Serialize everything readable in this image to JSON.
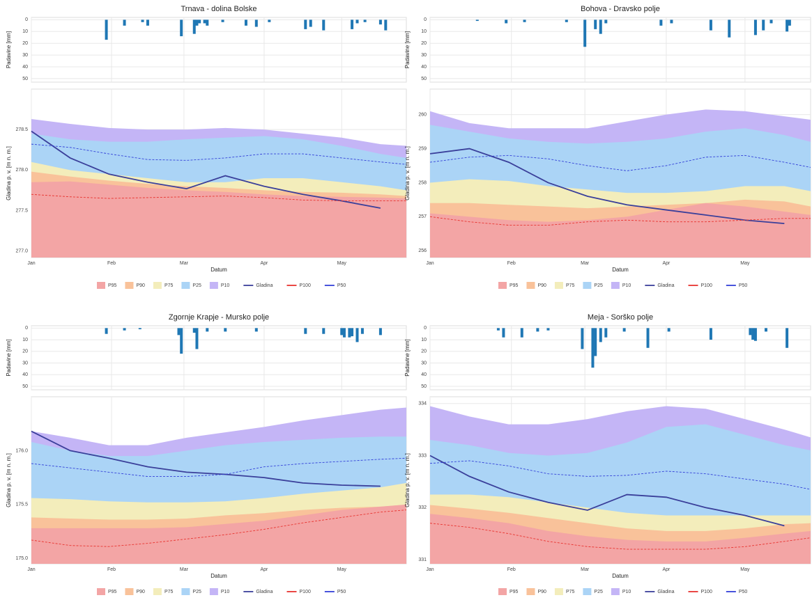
{
  "chart_data": [
    {
      "type": "bar",
      "title": "Trnava - dolina Bolske",
      "y_label": "Padavine [mm]",
      "color": "#1f77b4",
      "x": [
        29,
        36,
        43,
        45,
        58,
        63,
        64,
        65,
        67,
        68,
        74,
        83,
        87,
        92,
        106,
        108,
        113,
        124,
        126,
        129,
        135,
        137
      ],
      "values": [
        17,
        5,
        2,
        5,
        14,
        12,
        5,
        3,
        3,
        5,
        2,
        5,
        6,
        2,
        8,
        6,
        9,
        8,
        3,
        2,
        4,
        9
      ],
      "xlim": [
        0,
        145
      ],
      "xticks": [
        0,
        31,
        59,
        90,
        120
      ],
      "ylim": [
        53,
        -2
      ],
      "yticks": [
        0,
        10,
        20,
        30,
        40,
        50
      ],
      "grid": true
    },
    {
      "type": "area",
      "y_label": "Gladina p. v. [m n. m.]",
      "x_label": "Datum",
      "legend": "bottom",
      "grid": true,
      "x": [
        0,
        15,
        30,
        45,
        60,
        75,
        90,
        105,
        120,
        135,
        145
      ],
      "xlim": [
        0,
        145
      ],
      "xticks": [
        {
          "value": 0,
          "label": "Jan"
        },
        {
          "value": 31,
          "label": "Feb"
        },
        {
          "value": 59,
          "label": "Mar"
        },
        {
          "value": 90,
          "label": "Apr"
        },
        {
          "value": 120,
          "label": "May"
        }
      ],
      "ylim": [
        276.92,
        279.0
      ],
      "yticks": [
        {
          "value": 277,
          "label": "277.0"
        },
        277.5,
        {
          "value": 278,
          "label": "278.0"
        },
        278.5
      ],
      "series": [
        {
          "name": "P95",
          "kind": "area",
          "color": "#f3a5a5",
          "values": [
            277.85,
            277.86,
            277.82,
            277.78,
            277.75,
            277.73,
            277.7,
            277.68,
            277.67,
            277.66,
            277.65
          ]
        },
        {
          "name": "P90",
          "kind": "area",
          "color": "#f9c29a",
          "values": [
            277.98,
            277.92,
            277.87,
            277.83,
            277.8,
            277.78,
            277.75,
            277.73,
            277.72,
            277.7,
            277.68
          ]
        },
        {
          "name": "P75",
          "kind": "area",
          "color": "#f3edbb",
          "values": [
            278.1,
            278.0,
            277.95,
            277.9,
            277.85,
            277.85,
            277.9,
            277.9,
            277.85,
            277.8,
            277.75
          ]
        },
        {
          "name": "P25",
          "kind": "area",
          "color": "#abd4f6",
          "values": [
            278.45,
            278.38,
            278.35,
            278.35,
            278.38,
            278.4,
            278.42,
            278.38,
            278.3,
            278.2,
            278.15
          ]
        },
        {
          "name": "P10",
          "kind": "area",
          "color": "#c4b5f6",
          "values": [
            278.63,
            278.57,
            278.52,
            278.5,
            278.5,
            278.52,
            278.5,
            278.45,
            278.4,
            278.32,
            278.3
          ]
        },
        {
          "name": "Gladina",
          "kind": "line",
          "color": "#3a3f9a",
          "values": [
            278.48,
            278.15,
            277.95,
            277.85,
            277.77,
            277.93,
            277.8,
            277.7,
            277.62,
            277.53,
            null
          ]
        },
        {
          "name": "P100",
          "kind": "dashed",
          "color": "#e8332f",
          "values": [
            277.7,
            277.67,
            277.65,
            277.66,
            277.67,
            277.68,
            277.66,
            277.63,
            277.62,
            277.62,
            277.62
          ]
        },
        {
          "name": "P50",
          "kind": "dashed",
          "color": "#3340d8",
          "values": [
            278.32,
            278.28,
            278.2,
            278.13,
            278.12,
            278.15,
            278.2,
            278.2,
            278.15,
            278.1,
            278.07
          ]
        }
      ]
    },
    {
      "type": "bar",
      "title": "Bohova - Dravsko polje",
      "y_label": "Padavine [mm]",
      "color": "#1f77b4",
      "x": [
        18,
        29,
        36,
        52,
        59,
        63,
        65,
        67,
        88,
        92,
        107,
        114,
        124,
        127,
        130,
        136,
        137
      ],
      "values": [
        1,
        3,
        2,
        2,
        23,
        8,
        12,
        3,
        5,
        3,
        9,
        15,
        13,
        9,
        3,
        10,
        5
      ],
      "xlim": [
        0,
        145
      ],
      "xticks": [
        0,
        31,
        59,
        90,
        120
      ],
      "ylim": [
        53,
        -2
      ],
      "yticks": [
        0,
        10,
        20,
        30,
        40,
        50
      ],
      "grid": true
    },
    {
      "type": "area",
      "y_label": "Gladina p. v. [m n. m.]",
      "x_label": "Datum",
      "legend": "bottom",
      "grid": true,
      "x": [
        0,
        15,
        30,
        45,
        60,
        75,
        90,
        105,
        120,
        135,
        145
      ],
      "xlim": [
        0,
        145
      ],
      "xticks": [
        {
          "value": 0,
          "label": "Jan"
        },
        {
          "value": 31,
          "label": "Feb"
        },
        {
          "value": 59,
          "label": "Mar"
        },
        {
          "value": 90,
          "label": "Apr"
        },
        {
          "value": 120,
          "label": "May"
        }
      ],
      "ylim": [
        255.8,
        260.75
      ],
      "yticks": [
        256,
        257,
        258,
        259,
        260
      ],
      "series": [
        {
          "name": "P95",
          "kind": "area",
          "color": "#f3a5a5",
          "values": [
            257.1,
            257.0,
            256.9,
            256.85,
            256.9,
            257.0,
            257.2,
            257.4,
            257.3,
            257.15,
            257.05
          ]
        },
        {
          "name": "P90",
          "kind": "area",
          "color": "#f9c29a",
          "values": [
            257.4,
            257.4,
            257.35,
            257.3,
            257.25,
            257.3,
            257.35,
            257.4,
            257.5,
            257.45,
            257.3
          ]
        },
        {
          "name": "P75",
          "kind": "area",
          "color": "#f3edbb",
          "values": [
            258.0,
            258.1,
            258.05,
            257.9,
            257.8,
            257.7,
            257.7,
            257.75,
            257.9,
            257.9,
            257.75
          ]
        },
        {
          "name": "P25",
          "kind": "area",
          "color": "#abd4f6",
          "values": [
            259.7,
            259.5,
            259.3,
            259.2,
            259.15,
            259.2,
            259.3,
            259.5,
            259.6,
            259.4,
            259.2
          ]
        },
        {
          "name": "P10",
          "kind": "area",
          "color": "#c4b5f6",
          "values": [
            260.1,
            259.75,
            259.6,
            259.6,
            259.6,
            259.8,
            260.0,
            260.15,
            260.1,
            259.95,
            259.85
          ]
        },
        {
          "name": "Gladina",
          "kind": "line",
          "color": "#3a3f9a",
          "values": [
            258.85,
            259.0,
            258.6,
            258.0,
            257.6,
            257.35,
            257.2,
            257.05,
            256.9,
            256.8,
            null
          ]
        },
        {
          "name": "P100",
          "kind": "dashed",
          "color": "#e8332f",
          "values": [
            257.0,
            256.85,
            256.75,
            256.75,
            256.85,
            256.9,
            256.85,
            256.85,
            256.9,
            256.95,
            256.95
          ]
        },
        {
          "name": "P50",
          "kind": "dashed",
          "color": "#3340d8",
          "values": [
            258.6,
            258.75,
            258.8,
            258.7,
            258.5,
            258.35,
            258.5,
            258.75,
            258.8,
            258.6,
            258.45
          ]
        }
      ]
    },
    {
      "type": "bar",
      "title": "Zgornje Krapje - Mursko polje",
      "y_label": "Padavine [mm]",
      "color": "#1f77b4",
      "x": [
        29,
        36,
        42,
        57,
        58,
        63,
        64,
        68,
        75,
        87,
        106,
        113,
        120,
        121,
        123,
        124,
        126,
        128,
        135
      ],
      "values": [
        5,
        2,
        1,
        6,
        22,
        4,
        18,
        3,
        3,
        3,
        5,
        5,
        6,
        8,
        8,
        7,
        12,
        5,
        6
      ],
      "xlim": [
        0,
        145
      ],
      "xticks": [
        0,
        31,
        59,
        90,
        120
      ],
      "ylim": [
        53,
        -2
      ],
      "yticks": [
        0,
        10,
        20,
        30,
        40,
        50
      ],
      "grid": true
    },
    {
      "type": "area",
      "y_label": "Gladina p. v. [m n. m.]",
      "x_label": "Datum",
      "legend": "bottom",
      "grid": true,
      "x": [
        0,
        15,
        30,
        45,
        60,
        75,
        90,
        105,
        120,
        135,
        145
      ],
      "xlim": [
        0,
        145
      ],
      "xticks": [
        {
          "value": 0,
          "label": "Jan"
        },
        {
          "value": 31,
          "label": "Feb"
        },
        {
          "value": 59,
          "label": "Mar"
        },
        {
          "value": 90,
          "label": "Apr"
        },
        {
          "value": 120,
          "label": "May"
        }
      ],
      "ylim": [
        174.95,
        176.5
      ],
      "yticks": [
        {
          "value": 175,
          "label": "175.0"
        },
        175.5,
        {
          "value": 176,
          "label": "176.0"
        }
      ],
      "series": [
        {
          "name": "P95",
          "kind": "area",
          "color": "#f3a5a5",
          "values": [
            175.28,
            175.28,
            175.28,
            175.28,
            175.29,
            175.32,
            175.35,
            175.4,
            175.45,
            175.48,
            175.5
          ]
        },
        {
          "name": "P90",
          "kind": "area",
          "color": "#f9c29a",
          "values": [
            175.38,
            175.37,
            175.36,
            175.36,
            175.37,
            175.4,
            175.42,
            175.45,
            175.47,
            175.48,
            175.5
          ]
        },
        {
          "name": "P75",
          "kind": "area",
          "color": "#f3edbb",
          "values": [
            175.56,
            175.55,
            175.53,
            175.52,
            175.52,
            175.53,
            175.56,
            175.6,
            175.63,
            175.66,
            175.7
          ]
        },
        {
          "name": "P25",
          "kind": "area",
          "color": "#abd4f6",
          "values": [
            176.08,
            176.0,
            175.95,
            175.95,
            176.0,
            176.05,
            176.08,
            176.1,
            176.12,
            176.13,
            176.13
          ]
        },
        {
          "name": "P10",
          "kind": "area",
          "color": "#c4b5f6",
          "values": [
            176.18,
            176.12,
            176.05,
            176.05,
            176.12,
            176.17,
            176.22,
            176.28,
            176.33,
            176.38,
            176.4
          ]
        },
        {
          "name": "Gladina",
          "kind": "line",
          "color": "#3a3f9a",
          "values": [
            176.18,
            176.0,
            175.93,
            175.85,
            175.8,
            175.78,
            175.75,
            175.7,
            175.68,
            175.67,
            null
          ]
        },
        {
          "name": "P100",
          "kind": "dashed",
          "color": "#e8332f",
          "values": [
            175.17,
            175.12,
            175.11,
            175.14,
            175.18,
            175.22,
            175.27,
            175.33,
            175.38,
            175.43,
            175.45
          ]
        },
        {
          "name": "P50",
          "kind": "dashed",
          "color": "#3340d8",
          "values": [
            175.88,
            175.84,
            175.8,
            175.76,
            175.76,
            175.78,
            175.85,
            175.88,
            175.9,
            175.92,
            175.93
          ]
        }
      ]
    },
    {
      "type": "bar",
      "title": "Meja - Sorško polje",
      "y_label": "Padavine [mm]",
      "color": "#1f77b4",
      "x": [
        26,
        28,
        35,
        41,
        45,
        58,
        62,
        63,
        65,
        67,
        74,
        83,
        91,
        107,
        122,
        123,
        124,
        128,
        136
      ],
      "values": [
        2,
        8,
        8,
        3,
        2,
        18,
        34,
        24,
        12,
        8,
        3,
        17,
        3,
        10,
        6,
        10,
        11,
        3,
        17
      ],
      "xlim": [
        0,
        145
      ],
      "xticks": [
        0,
        31,
        59,
        90,
        120
      ],
      "ylim": [
        53,
        -2
      ],
      "yticks": [
        0,
        10,
        20,
        30,
        40,
        50
      ],
      "grid": true
    },
    {
      "type": "area",
      "y_label": "Gladina p. v. [m n. m.]",
      "x_label": "Datum",
      "legend": "bottom",
      "grid": true,
      "x": [
        0,
        15,
        30,
        45,
        60,
        75,
        90,
        105,
        120,
        135,
        145
      ],
      "xlim": [
        0,
        145
      ],
      "xticks": [
        {
          "value": 0,
          "label": "Jan"
        },
        {
          "value": 31,
          "label": "Feb"
        },
        {
          "value": 59,
          "label": "Mar"
        },
        {
          "value": 90,
          "label": "Apr"
        },
        {
          "value": 120,
          "label": "May"
        }
      ],
      "ylim": [
        330.92,
        334.13
      ],
      "yticks": [
        331,
        332,
        333,
        334
      ],
      "series": [
        {
          "name": "P95",
          "kind": "area",
          "color": "#f3a5a5",
          "values": [
            331.88,
            331.8,
            331.7,
            331.55,
            331.45,
            331.38,
            331.35,
            331.35,
            331.42,
            331.5,
            331.55
          ]
        },
        {
          "name": "P90",
          "kind": "area",
          "color": "#f9c29a",
          "values": [
            332.05,
            331.98,
            331.9,
            331.8,
            331.7,
            331.6,
            331.55,
            331.55,
            331.6,
            331.68,
            331.7
          ]
        },
        {
          "name": "P75",
          "kind": "area",
          "color": "#f3edbb",
          "values": [
            332.25,
            332.25,
            332.2,
            332.1,
            332.0,
            331.9,
            331.85,
            331.85,
            331.85,
            331.85,
            331.85
          ]
        },
        {
          "name": "P25",
          "kind": "area",
          "color": "#abd4f6",
          "values": [
            333.3,
            333.2,
            333.05,
            333.0,
            333.05,
            333.25,
            333.55,
            333.6,
            333.4,
            333.2,
            333.1
          ]
        },
        {
          "name": "P10",
          "kind": "area",
          "color": "#c4b5f6",
          "values": [
            333.95,
            333.75,
            333.6,
            333.6,
            333.7,
            333.85,
            333.95,
            333.9,
            333.7,
            333.5,
            333.35
          ]
        },
        {
          "name": "Gladina",
          "kind": "line",
          "color": "#3a3f9a",
          "values": [
            333.0,
            332.6,
            332.3,
            332.1,
            331.95,
            332.25,
            332.2,
            332.0,
            331.85,
            331.65,
            null
          ]
        },
        {
          "name": "P100",
          "kind": "dashed",
          "color": "#e8332f",
          "values": [
            331.7,
            331.62,
            331.5,
            331.35,
            331.25,
            331.2,
            331.2,
            331.2,
            331.25,
            331.35,
            331.42
          ]
        },
        {
          "name": "P50",
          "kind": "dashed",
          "color": "#3340d8",
          "values": [
            332.85,
            332.9,
            332.8,
            332.65,
            332.6,
            332.62,
            332.7,
            332.65,
            332.55,
            332.45,
            332.35
          ]
        }
      ]
    }
  ]
}
